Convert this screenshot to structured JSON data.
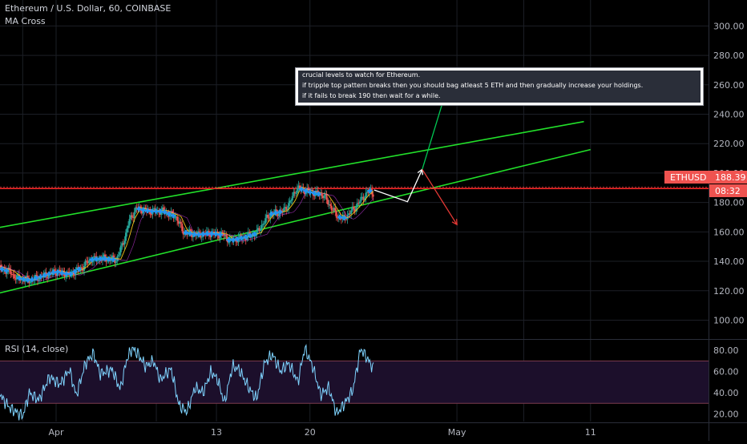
{
  "chart_data": [
    {
      "type": "candlestick",
      "title": "Ethereum / U.S. Dollar, 60, COINBASE",
      "indicator": "MA Cross",
      "ylim": [
        88,
        312
      ],
      "yticks": [
        "100.00",
        "120.00",
        "140.00",
        "160.00",
        "180.00",
        "200.00",
        "220.00",
        "240.00",
        "260.00",
        "280.00",
        "300.00"
      ],
      "xticks": [
        {
          "label": "Apr",
          "day": 0
        },
        {
          "label": "13",
          "day": 12
        },
        {
          "label": "20",
          "day": 19
        },
        {
          "label": "May",
          "day": 30
        },
        {
          "label": "11",
          "day": 40
        }
      ],
      "price_path": [
        [
          -6.7,
          137
        ],
        [
          -5.5,
          139
        ],
        [
          -4.5,
          136
        ],
        [
          -3.5,
          133
        ],
        [
          -3.0,
          129
        ],
        [
          -2.0,
          127
        ],
        [
          -1.0,
          130
        ],
        [
          0.0,
          133
        ],
        [
          1.0,
          131
        ],
        [
          2.0,
          136
        ],
        [
          2.5,
          141
        ],
        [
          3.5,
          142
        ],
        [
          4.5,
          141
        ],
        [
          5.0,
          152
        ],
        [
          5.5,
          168
        ],
        [
          6.0,
          176
        ],
        [
          7.0,
          174
        ],
        [
          8.0,
          174
        ],
        [
          9.0,
          170
        ],
        [
          9.5,
          160
        ],
        [
          10.5,
          158
        ],
        [
          11.5,
          159
        ],
        [
          12.5,
          158
        ],
        [
          13.0,
          154
        ],
        [
          14.0,
          156
        ],
        [
          15.0,
          159
        ],
        [
          15.5,
          166
        ],
        [
          16.0,
          172
        ],
        [
          17.0,
          174
        ],
        [
          17.5,
          180
        ],
        [
          18.0,
          190
        ],
        [
          19.0,
          187
        ],
        [
          20.0,
          185
        ],
        [
          20.5,
          178
        ],
        [
          21.0,
          171
        ],
        [
          21.5,
          169
        ],
        [
          22.0,
          173
        ],
        [
          22.5,
          178
        ],
        [
          23.0,
          184
        ],
        [
          23.5,
          188
        ],
        [
          23.8,
          186
        ]
      ],
      "last_price": {
        "symbol": "ETHUSD",
        "value": "188.39",
        "countdown": "08:32"
      },
      "red_level": 189.5,
      "channel": {
        "upper": [
          [
            -6.7,
            159
          ],
          [
            29,
            202
          ],
          [
            39.5,
            235
          ]
        ],
        "lower": [
          [
            -6.7,
            113
          ],
          [
            18,
            162
          ],
          [
            40,
            216
          ]
        ]
      },
      "projections": [
        {
          "color": "#ffffff",
          "points": [
            [
              23.8,
              188.5
            ],
            [
              26.3,
              180.5
            ],
            [
              27.4,
              202.5
            ]
          ]
        },
        {
          "color": "#00c853",
          "points": [
            [
              27.4,
              202.5
            ],
            [
              29.0,
              250
            ]
          ]
        },
        {
          "color": "#e53935",
          "points": [
            [
              27.4,
              202.5
            ],
            [
              30.0,
              165
            ]
          ]
        }
      ],
      "annotation": [
        "crucial levels to watch for Ethereum.",
        "if tripple top pattern breaks then you should bag atleast 5 ETH and then gradually increase your holdings.",
        "if it fails to break 190 then wait for a while."
      ]
    },
    {
      "type": "line",
      "title": "RSI (14, close)",
      "ylim": [
        12,
        90
      ],
      "yticks": [
        "20.00",
        "40.00",
        "60.00",
        "80.00"
      ],
      "band": [
        30,
        70
      ],
      "rsi_path": [
        [
          -6.7,
          52
        ],
        [
          -6.0,
          60
        ],
        [
          -5.4,
          45
        ],
        [
          -4.8,
          55
        ],
        [
          -4.0,
          34
        ],
        [
          -3.4,
          25
        ],
        [
          -3.0,
          22
        ],
        [
          -2.5,
          18
        ],
        [
          -2.0,
          40
        ],
        [
          -1.3,
          33
        ],
        [
          -0.5,
          55
        ],
        [
          0.3,
          48
        ],
        [
          1.0,
          62
        ],
        [
          1.5,
          37
        ],
        [
          2.2,
          68
        ],
        [
          2.8,
          77
        ],
        [
          3.3,
          58
        ],
        [
          4.2,
          62
        ],
        [
          4.8,
          43
        ],
        [
          5.3,
          72
        ],
        [
          5.7,
          82
        ],
        [
          6.1,
          77
        ],
        [
          6.7,
          65
        ],
        [
          7.3,
          70
        ],
        [
          7.8,
          52
        ],
        [
          8.6,
          63
        ],
        [
          9.2,
          28
        ],
        [
          9.8,
          22
        ],
        [
          10.4,
          45
        ],
        [
          11.0,
          40
        ],
        [
          11.6,
          60
        ],
        [
          12.1,
          52
        ],
        [
          12.6,
          30
        ],
        [
          13.2,
          65
        ],
        [
          13.7,
          62
        ],
        [
          14.4,
          45
        ],
        [
          15.0,
          34
        ],
        [
          15.6,
          68
        ],
        [
          16.2,
          76
        ],
        [
          16.8,
          60
        ],
        [
          17.4,
          68
        ],
        [
          18.1,
          50
        ],
        [
          18.6,
          82
        ],
        [
          19.2,
          65
        ],
        [
          19.8,
          38
        ],
        [
          20.4,
          45
        ],
        [
          21.0,
          20
        ],
        [
          21.6,
          30
        ],
        [
          22.2,
          42
        ],
        [
          22.8,
          82
        ],
        [
          23.3,
          72
        ],
        [
          23.8,
          62
        ]
      ]
    }
  ]
}
